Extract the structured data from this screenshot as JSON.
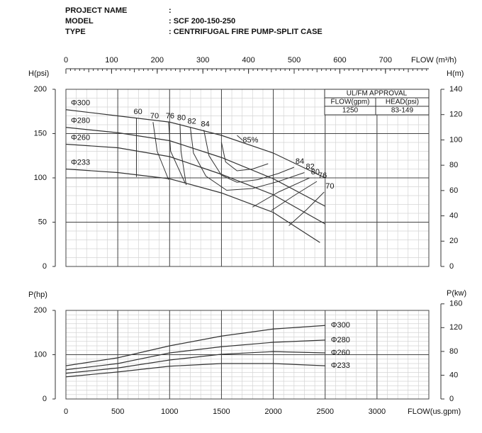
{
  "header": {
    "rows": [
      [
        "PROJECT NAME",
        ":"
      ],
      [
        "MODEL",
        ": SCF 200-150-250"
      ],
      [
        "TYPE",
        ": CENTRIFUGAL FIRE PUMP-SPLIT CASE"
      ]
    ]
  },
  "approval": {
    "title": "UL/FM APPROVAL",
    "columns": [
      "FLOW(gpm)",
      "HEAD(psi)"
    ],
    "row": [
      "1250",
      "83-149"
    ]
  },
  "chart_data": [
    {
      "type": "line",
      "ylabel": "H(psi)",
      "y2label": "H(m)",
      "x2label": "FLOW (m³/h)",
      "xlim": [
        0,
        3500
      ],
      "x2lim": [
        0,
        795
      ],
      "x2ticks": [
        0,
        100,
        200,
        300,
        400,
        500,
        600,
        700
      ],
      "ylim": [
        0,
        200
      ],
      "yticks": [
        0,
        50,
        100,
        150,
        200
      ],
      "y2lim": [
        0,
        140
      ],
      "y2ticks": [
        0,
        20,
        40,
        60,
        80,
        100,
        120,
        140
      ],
      "grid": true,
      "minor_grid": true,
      "series": [
        {
          "name": "Φ300",
          "color": "#333333",
          "x": [
            0,
            500,
            1000,
            1500,
            2000,
            2500
          ],
          "values": [
            177,
            170,
            163,
            148,
            128,
            100
          ]
        },
        {
          "name": "Φ280",
          "color": "#333333",
          "x": [
            0,
            500,
            1000,
            1500,
            2000,
            2500
          ],
          "values": [
            157,
            151,
            142,
            123,
            99,
            68
          ]
        },
        {
          "name": "Φ260",
          "color": "#333333",
          "x": [
            0,
            500,
            1000,
            1500,
            2000,
            2500
          ],
          "values": [
            138,
            134,
            124,
            104,
            81,
            48
          ]
        },
        {
          "name": "Φ233",
          "color": "#333333",
          "x": [
            0,
            500,
            1000,
            1500,
            2000,
            2450
          ],
          "values": [
            110,
            106,
            99,
            83,
            61,
            27
          ]
        }
      ],
      "efficiency_curves": [
        {
          "label": "60",
          "x": [
            680,
            680
          ],
          "values": [
            168,
            101
          ]
        },
        {
          "label": "70",
          "x": [
            840,
            880,
            990,
            null,
            2150,
            2320,
            2490
          ],
          "values": [
            163,
            130,
            98,
            null,
            46,
            64,
            84
          ]
        },
        {
          "label": "76",
          "x": [
            990,
            1010,
            1150,
            null,
            1980,
            2200,
            2420
          ],
          "values": [
            163,
            130,
            94,
            null,
            63,
            80,
            96
          ]
        },
        {
          "label": "80",
          "x": [
            1100,
            1110,
            1160,
            null,
            1800,
            2050,
            2350
          ],
          "values": [
            161,
            130,
            92,
            null,
            67,
            84,
            100
          ]
        },
        {
          "label": "82",
          "x": [
            1200,
            1230,
            1350,
            1550,
            1800,
            2050,
            2300
          ],
          "values": [
            157,
            128,
            102,
            86,
            88,
            96,
            106
          ]
        },
        {
          "label": "84",
          "x": [
            1330,
            1380,
            1500,
            1650,
            1850,
            2050,
            2200
          ],
          "values": [
            154,
            125,
            103,
            95,
            98,
            105,
            112
          ]
        },
        {
          "label": "85%",
          "x": [
            1500,
            1540,
            1650,
            1800,
            1950
          ],
          "values": [
            140,
            118,
            108,
            110,
            116
          ]
        }
      ]
    },
    {
      "type": "line",
      "ylabel": "P(hp)",
      "y2label": "P(kw)",
      "xlabel": "FLOW(us.gpm)",
      "xlim": [
        0,
        3500
      ],
      "xticks": [
        0,
        500,
        1000,
        1500,
        2000,
        2500,
        3000
      ],
      "ylim": [
        0,
        200
      ],
      "yticks": [
        0,
        100,
        200
      ],
      "y2lim": [
        0,
        149
      ],
      "y2ticks": [
        0,
        40,
        80,
        120,
        160
      ],
      "grid": true,
      "minor_grid": true,
      "series": [
        {
          "name": "Φ300",
          "color": "#333333",
          "x": [
            0,
            500,
            1000,
            1500,
            2000,
            2500
          ],
          "values": [
            75,
            93,
            120,
            142,
            158,
            166
          ]
        },
        {
          "name": "Φ280",
          "color": "#333333",
          "x": [
            0,
            500,
            1000,
            1500,
            2000,
            2500
          ],
          "values": [
            66,
            80,
            104,
            118,
            128,
            133
          ]
        },
        {
          "name": "Φ260",
          "color": "#333333",
          "x": [
            0,
            500,
            1000,
            1500,
            2000,
            2500
          ],
          "values": [
            58,
            70,
            88,
            101,
            107,
            104
          ]
        },
        {
          "name": "Φ233",
          "color": "#333333",
          "x": [
            0,
            500,
            1000,
            1500,
            2000,
            2500
          ],
          "values": [
            50,
            61,
            74,
            80,
            80,
            75
          ]
        }
      ]
    }
  ]
}
